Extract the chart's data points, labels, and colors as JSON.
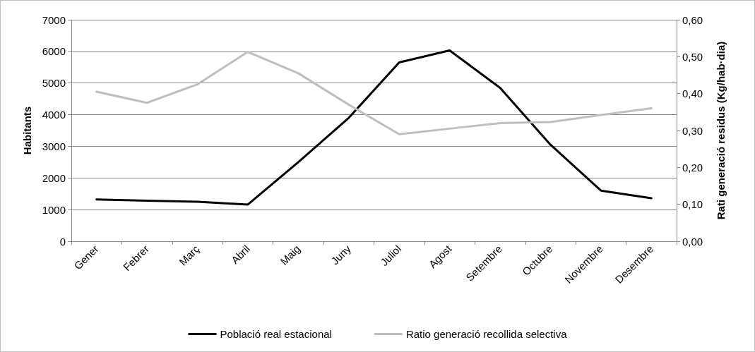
{
  "chart_data": {
    "type": "line",
    "ylabel": "Habitants",
    "y2label": "Rati generació residus (Kg/hab·dia)",
    "categories": [
      "Gener",
      "Febrer",
      "Març",
      "Abril",
      "Maig",
      "Juny",
      "Juliol",
      "Agost",
      "Setembre",
      "Octubre",
      "Novembre",
      "Desembre"
    ],
    "series": [
      {
        "name": "Població real estacional",
        "color": "#000000",
        "values": [
          1320,
          1280,
          1250,
          1160,
          2500,
          3900,
          5650,
          6030,
          4850,
          3050,
          1600,
          1360
        ]
      },
      {
        "name": "Ratio generació recollida selectiva",
        "color": "#bfbfbf",
        "axis": "y2",
        "values": [
          0.405,
          0.375,
          0.425,
          0.513,
          0.455,
          0.37,
          0.29,
          0.305,
          0.32,
          0.323,
          0.342,
          0.36
        ]
      }
    ],
    "ylim": [
      0,
      7000
    ],
    "yticks": [
      0,
      1000,
      2000,
      3000,
      4000,
      5000,
      6000,
      7000
    ],
    "y2lim": [
      0,
      0.6
    ],
    "y2ticks": [
      {
        "value": 0,
        "label": "0,00"
      },
      {
        "value": 0.1,
        "label": "0,10"
      },
      {
        "value": 0.2,
        "label": "0,20"
      },
      {
        "value": 0.3,
        "label": "0,30"
      },
      {
        "value": 0.4,
        "label": "0,40"
      },
      {
        "value": 0.5,
        "label": "0,50"
      },
      {
        "value": 0.6,
        "label": "0,60"
      }
    ],
    "grid": "y",
    "legend": "bottom",
    "marker": "none",
    "line_style": "solid"
  }
}
